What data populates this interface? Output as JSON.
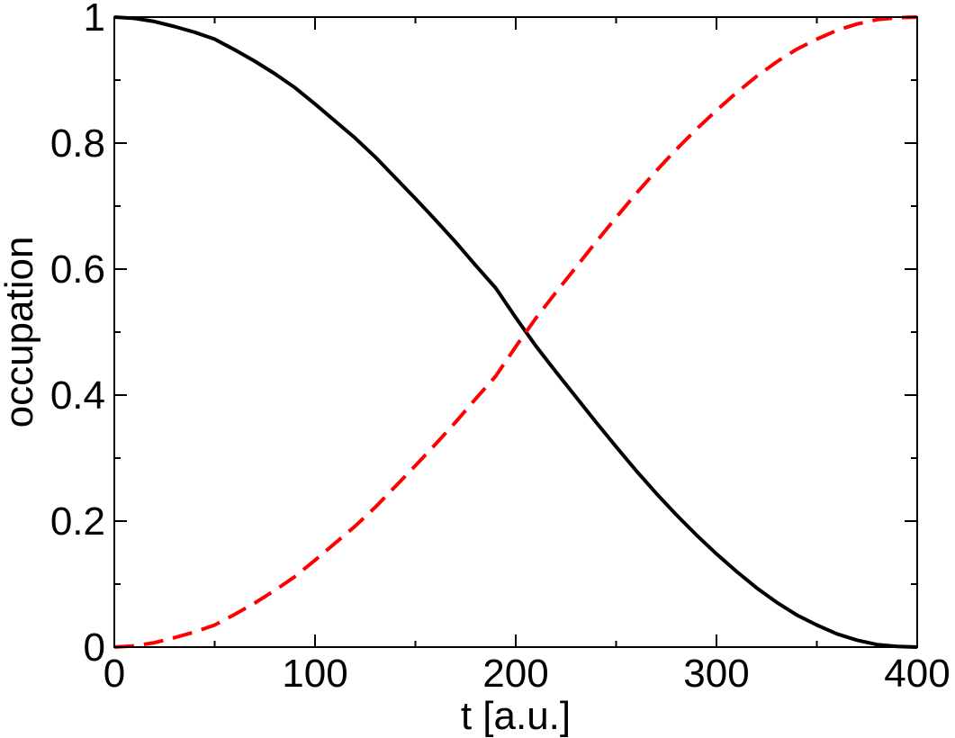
{
  "chart_data": {
    "type": "line",
    "title": "",
    "xlabel": "t [a.u.]",
    "ylabel": "occupation",
    "xlim": [
      0,
      400
    ],
    "ylim": [
      0,
      1
    ],
    "xticks": [
      0,
      100,
      200,
      300,
      400
    ],
    "xtick_labels": [
      "0",
      "100",
      "200",
      "300",
      "400"
    ],
    "yticks": [
      0,
      0.2,
      0.4,
      0.6,
      0.8,
      1
    ],
    "ytick_labels": [
      "0",
      "0.2",
      "0.4",
      "0.6",
      "0.8",
      "1"
    ],
    "grid": false,
    "legend": "none",
    "series": [
      {
        "color": "#000000",
        "style": "solid",
        "x": [
          0,
          10,
          20,
          30,
          40,
          50,
          60,
          70,
          80,
          90,
          100,
          110,
          120,
          130,
          140,
          150,
          160,
          170,
          180,
          190,
          200,
          210,
          220,
          230,
          240,
          250,
          260,
          270,
          280,
          290,
          300,
          310,
          320,
          330,
          340,
          350,
          360,
          370,
          380,
          390,
          400
        ],
        "y": [
          1.0,
          0.998,
          0.993,
          0.985,
          0.976,
          0.965,
          0.948,
          0.93,
          0.91,
          0.888,
          0.862,
          0.835,
          0.808,
          0.778,
          0.745,
          0.712,
          0.678,
          0.643,
          0.606,
          0.57,
          0.523,
          0.478,
          0.437,
          0.397,
          0.357,
          0.318,
          0.28,
          0.244,
          0.21,
          0.178,
          0.148,
          0.12,
          0.094,
          0.071,
          0.051,
          0.035,
          0.021,
          0.011,
          0.004,
          0.001,
          0.0
        ]
      },
      {
        "color": "#ff0000",
        "style": "dashed",
        "x": [
          0,
          10,
          20,
          30,
          40,
          50,
          60,
          70,
          80,
          90,
          100,
          110,
          120,
          130,
          140,
          150,
          160,
          170,
          180,
          190,
          200,
          210,
          220,
          230,
          240,
          250,
          260,
          270,
          280,
          290,
          300,
          310,
          320,
          330,
          340,
          350,
          360,
          370,
          380,
          390,
          400
        ],
        "y": [
          0.0,
          0.002,
          0.007,
          0.015,
          0.024,
          0.035,
          0.052,
          0.07,
          0.09,
          0.112,
          0.138,
          0.165,
          0.192,
          0.222,
          0.255,
          0.288,
          0.322,
          0.357,
          0.394,
          0.43,
          0.477,
          0.522,
          0.563,
          0.603,
          0.643,
          0.682,
          0.72,
          0.756,
          0.79,
          0.822,
          0.852,
          0.88,
          0.906,
          0.929,
          0.949,
          0.965,
          0.979,
          0.989,
          0.996,
          0.999,
          1.0
        ]
      }
    ]
  }
}
